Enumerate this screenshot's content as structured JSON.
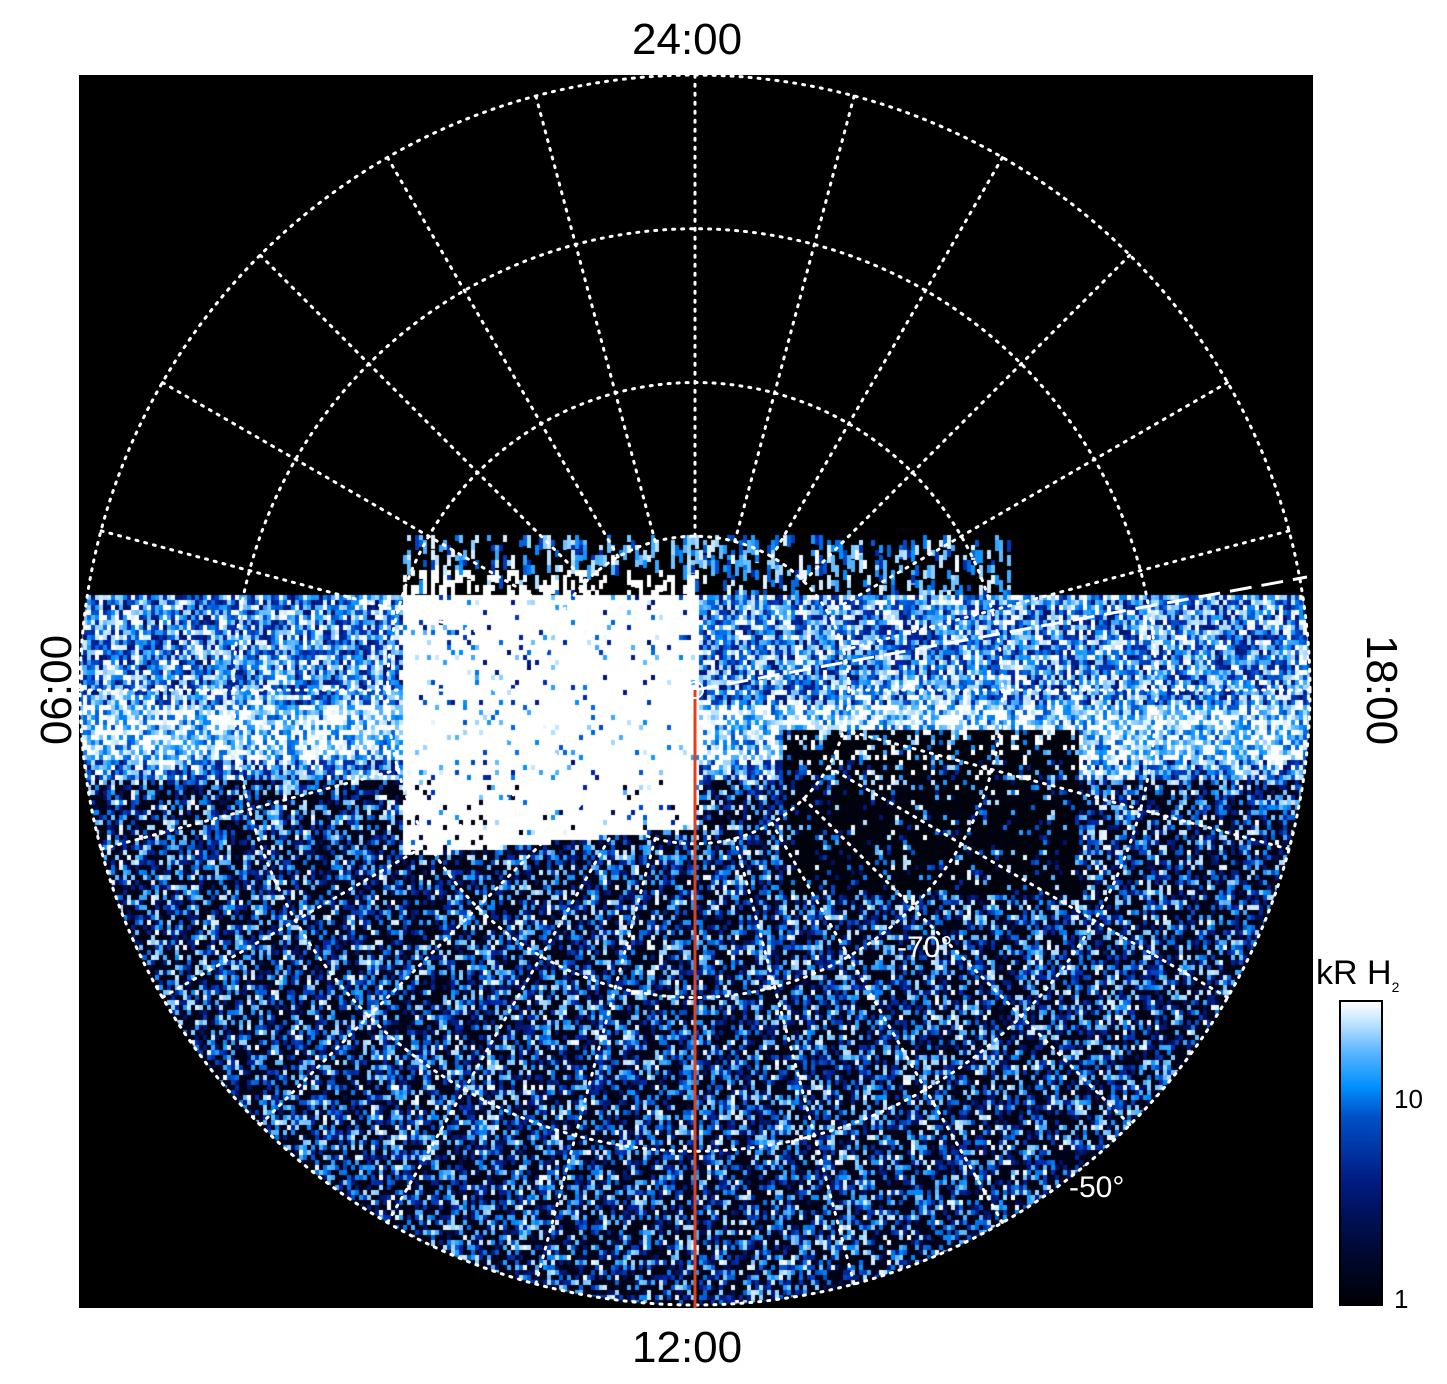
{
  "chart_data": {
    "type": "heatmap",
    "projection": "polar",
    "local_time_labels": {
      "top": "24:00",
      "bottom": "12:00",
      "left": "06:00",
      "right": "18:00"
    },
    "latitude_rings": [
      -80,
      -70,
      -60,
      -50
    ],
    "latitude_labels": [
      "-70°",
      "-50°"
    ],
    "meridian_spacing_hours": 1,
    "colorbar": {
      "title": "kR H",
      "title_subscript": "2",
      "scale": "log",
      "range": [
        1,
        30
      ],
      "tick_labels": [
        "1",
        "10"
      ],
      "colors": [
        "#000000",
        "#001a80",
        "#0090ff",
        "#ffffff"
      ]
    },
    "grid": true,
    "overlays": {
      "noon_line_color": "#e0401a",
      "dashed_line_color": "#ffffff"
    }
  }
}
